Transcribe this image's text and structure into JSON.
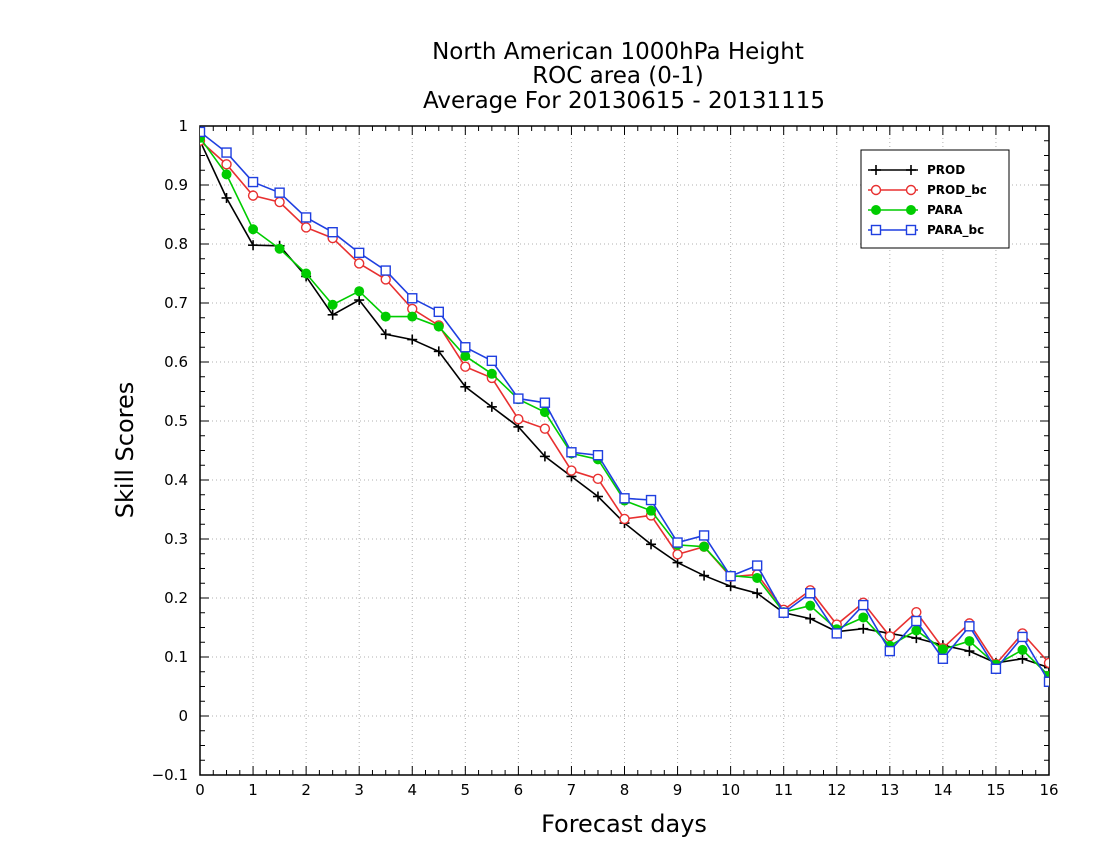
{
  "chart_data": {
    "type": "line",
    "title": [
      "North American 1000hPa Height",
      "ROC area (0-1)",
      "Average For 20130615 - 20131115"
    ],
    "xlabel": "Forecast days",
    "ylabel": "Skill Scores",
    "xlim": [
      0,
      16
    ],
    "ylim": [
      -0.1,
      1
    ],
    "xticks": [
      "0",
      "1",
      "2",
      "3",
      "4",
      "5",
      "6",
      "7",
      "8",
      "9",
      "10",
      "11",
      "12",
      "13",
      "14",
      "15",
      "16"
    ],
    "yticks": [
      "−0.1",
      "0",
      "0.1",
      "0.2",
      "0.3",
      "0.4",
      "0.5",
      "0.6",
      "0.7",
      "0.8",
      "0.9",
      "1"
    ],
    "grid": true,
    "legend_position": "top-right",
    "x": [
      0,
      0.5,
      1,
      1.5,
      2,
      2.5,
      3,
      3.5,
      4,
      4.5,
      5,
      5.5,
      6,
      6.5,
      7,
      7.5,
      8,
      8.5,
      9,
      9.5,
      10,
      10.5,
      11,
      11.5,
      12,
      12.5,
      13,
      13.5,
      14,
      14.5,
      15,
      15.5,
      16
    ],
    "series": [
      {
        "name": "PROD",
        "color": "#000000",
        "marker": "plus",
        "values": [
          0.975,
          0.878,
          0.798,
          0.797,
          0.745,
          0.68,
          0.705,
          0.647,
          0.638,
          0.618,
          0.558,
          0.524,
          0.49,
          0.44,
          0.406,
          0.372,
          0.327,
          0.291,
          0.26,
          0.238,
          0.22,
          0.208,
          0.175,
          0.165,
          0.143,
          0.148,
          0.14,
          0.132,
          0.12,
          0.11,
          0.09,
          0.097,
          0.082
        ]
      },
      {
        "name": "PROD_bc",
        "color": "#e83030",
        "marker": "circle-open",
        "values": [
          0.975,
          0.935,
          0.882,
          0.871,
          0.828,
          0.81,
          0.767,
          0.74,
          0.69,
          0.662,
          0.592,
          0.573,
          0.503,
          0.487,
          0.416,
          0.402,
          0.334,
          0.34,
          0.274,
          0.287,
          0.236,
          0.24,
          0.18,
          0.213,
          0.155,
          0.192,
          0.135,
          0.176,
          0.115,
          0.157,
          0.088,
          0.14,
          0.09
        ]
      },
      {
        "name": "PARA",
        "color": "#00cc00",
        "marker": "circle-filled",
        "values": [
          0.98,
          0.918,
          0.825,
          0.792,
          0.75,
          0.697,
          0.72,
          0.677,
          0.677,
          0.66,
          0.61,
          0.58,
          0.537,
          0.515,
          0.445,
          0.435,
          0.365,
          0.348,
          0.29,
          0.287,
          0.238,
          0.234,
          0.176,
          0.187,
          0.147,
          0.167,
          0.119,
          0.145,
          0.113,
          0.127,
          0.087,
          0.112,
          0.068
        ]
      },
      {
        "name": "PARA_bc",
        "color": "#1f3fe0",
        "marker": "square-open",
        "values": [
          0.99,
          0.955,
          0.905,
          0.887,
          0.845,
          0.82,
          0.785,
          0.755,
          0.708,
          0.685,
          0.625,
          0.602,
          0.538,
          0.531,
          0.447,
          0.442,
          0.369,
          0.366,
          0.294,
          0.306,
          0.237,
          0.255,
          0.175,
          0.208,
          0.14,
          0.188,
          0.11,
          0.161,
          0.097,
          0.152,
          0.08,
          0.134,
          0.058
        ]
      }
    ]
  }
}
